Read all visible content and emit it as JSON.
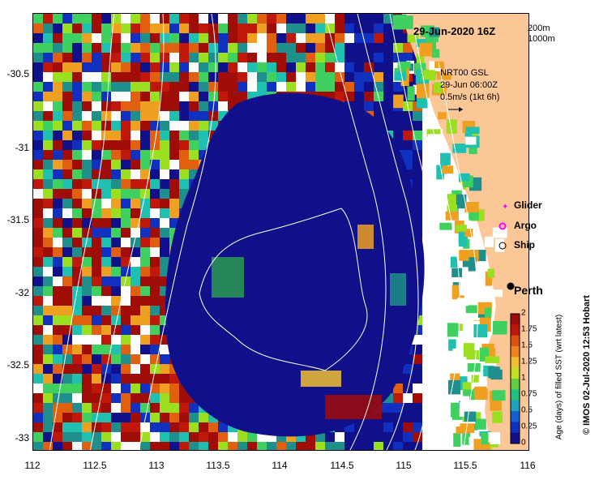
{
  "map": {
    "title": "29-Jun-2020 16Z",
    "x_ticks": [
      "112",
      "112.5",
      "113",
      "113.5",
      "114",
      "114.5",
      "115",
      "115.5",
      "116"
    ],
    "y_ticks": [
      "-30.5",
      "-31",
      "-31.5",
      "-32",
      "-32.5",
      "-33"
    ],
    "depth_contours": [
      "200m",
      "1000m"
    ],
    "wind_source": "NRT00 GSL",
    "wind_time": "29-Jun 06:00Z",
    "wind_scale": "0.5m/s (1kt 6h)",
    "legend": {
      "glider": "Glider",
      "argo": "Argo",
      "ship": "Ship"
    },
    "city": "Perth",
    "colorbar_title": "Age (days) of filled SST (wrt latest)",
    "colorbar_ticks": [
      "2",
      "1.75",
      "1.5",
      "1.25",
      "1",
      "0.75",
      "0.5",
      "0.25",
      "0"
    ],
    "credit": "© IMOS 02-Jul-2020 12:53 Hobart",
    "colors": {
      "land": "#fbc796",
      "ocean_deep": "#10108a",
      "age_old": "#a00c06"
    }
  }
}
